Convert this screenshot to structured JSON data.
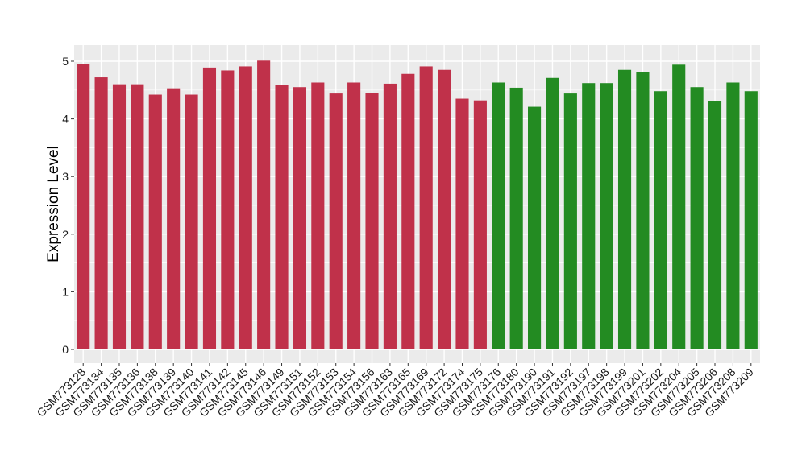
{
  "chart_data": {
    "type": "bar",
    "title": "",
    "xlabel": "",
    "ylabel": "Expression Level",
    "ylim": [
      0,
      5.15
    ],
    "yticks": [
      0,
      1,
      2,
      3,
      4,
      5
    ],
    "ytick_labels": [
      "0",
      "1",
      "2",
      "3",
      "4",
      "5"
    ],
    "grid": true,
    "legend": "none",
    "background": "#ebebeb",
    "grid_color": "#ffffff",
    "series_colors": {
      "group1": "#c0314a",
      "group2": "#238b22"
    },
    "categories": [
      "GSM773128",
      "GSM773134",
      "GSM773135",
      "GSM773136",
      "GSM773138",
      "GSM773139",
      "GSM773140",
      "GSM773141",
      "GSM773142",
      "GSM773145",
      "GSM773146",
      "GSM773149",
      "GSM773151",
      "GSM773152",
      "GSM773153",
      "GSM773154",
      "GSM773156",
      "GSM773163",
      "GSM773165",
      "GSM773169",
      "GSM773172",
      "GSM773174",
      "GSM773175",
      "GSM773176",
      "GSM773180",
      "GSM773190",
      "GSM773191",
      "GSM773192",
      "GSM773197",
      "GSM773198",
      "GSM773199",
      "GSM773201",
      "GSM773202",
      "GSM773204",
      "GSM773205",
      "GSM773206",
      "GSM773208",
      "GSM773209"
    ],
    "values": [
      4.95,
      4.72,
      4.6,
      4.6,
      4.42,
      4.53,
      4.42,
      4.89,
      4.84,
      4.91,
      5.01,
      4.59,
      4.55,
      4.63,
      4.44,
      4.63,
      4.45,
      4.61,
      4.78,
      4.91,
      4.85,
      4.35,
      4.32,
      4.63,
      4.54,
      4.21,
      4.71,
      4.44,
      4.62,
      4.62,
      4.85,
      4.81,
      4.48,
      4.94,
      4.55,
      4.31,
      4.63,
      4.48
    ],
    "groups": [
      "group1",
      "group1",
      "group1",
      "group1",
      "group1",
      "group1",
      "group1",
      "group1",
      "group1",
      "group1",
      "group1",
      "group1",
      "group1",
      "group1",
      "group1",
      "group1",
      "group1",
      "group1",
      "group1",
      "group1",
      "group1",
      "group1",
      "group1",
      "group2",
      "group2",
      "group2",
      "group2",
      "group2",
      "group2",
      "group2",
      "group2",
      "group2",
      "group2",
      "group2",
      "group2",
      "group2",
      "group2",
      "group2"
    ]
  }
}
